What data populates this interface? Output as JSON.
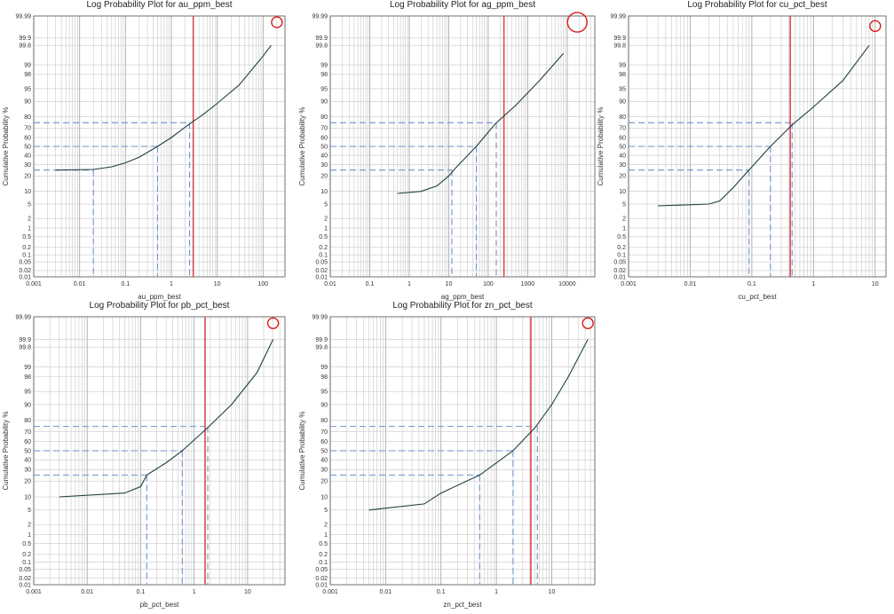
{
  "colors": {
    "curve": "#1f3f3f",
    "grid": "#c8c8c8",
    "guide": "#6f93c9",
    "cutoff": "#e0474c",
    "outlier_marker": "#d91e1e",
    "frame": "#555555"
  },
  "y_axis_label": "Cumulative Probability %",
  "y_tick_labels": [
    "0.01",
    "0.02",
    "0.05",
    "0.1",
    "0.2",
    "0.5",
    "1",
    "2",
    "5",
    "10",
    "20",
    "30",
    "40",
    "50",
    "60",
    "70",
    "80",
    "90",
    "95",
    "98",
    "99",
    "99.8",
    "99.9",
    "99.99"
  ],
  "chart_data": [
    {
      "type": "line",
      "title": "Log Probability Plot for au_ppm_best",
      "xlabel": "au_ppm_best",
      "ylabel": "Cumulative Probability %",
      "x_scale": "log",
      "y_scale": "probability",
      "xlim": [
        0.001,
        300
      ],
      "ylim": [
        0.01,
        99.99
      ],
      "x_tick_labels": [
        "0.001",
        "0.01",
        "0.1",
        "1",
        "10",
        "100"
      ],
      "series": [
        {
          "x": [
            0.003,
            0.02,
            0.05,
            0.1,
            0.2,
            0.5,
            1,
            2.5,
            5,
            10,
            30,
            100,
            150
          ],
          "y": [
            25,
            25.5,
            28,
            32,
            38,
            50,
            60,
            74,
            82,
            89,
            96,
            99.5,
            99.8
          ]
        }
      ],
      "quartiles": [
        {
          "p": 25,
          "x": 0.02
        },
        {
          "p": 50,
          "x": 0.5
        },
        {
          "p": 75,
          "x": 2.5
        }
      ],
      "cutoff_x": 3,
      "outlier_marker": {
        "x": 200,
        "y": 99.98
      }
    },
    {
      "type": "line",
      "title": "Log Probability Plot for ag_ppm_best",
      "xlabel": "ag_ppm_best",
      "ylabel": "Cumulative Probability %",
      "x_scale": "log",
      "y_scale": "probability",
      "xlim": [
        0.01,
        50000
      ],
      "ylim": [
        0.01,
        99.99
      ],
      "x_tick_labels": [
        "0.01",
        "0.1",
        "1",
        "10",
        "100",
        "1000",
        "10000"
      ],
      "series": [
        {
          "x": [
            0.5,
            2,
            5,
            10,
            15,
            50,
            150,
            500,
            2000,
            8000
          ],
          "y": [
            9,
            10,
            13,
            20,
            27,
            50,
            74,
            88,
            97,
            99.6
          ]
        }
      ],
      "quartiles": [
        {
          "p": 25,
          "x": 12
        },
        {
          "p": 50,
          "x": 50
        },
        {
          "p": 75,
          "x": 160
        }
      ],
      "cutoff_x": 250,
      "outlier_marker": {
        "x": 18000,
        "y": 99.98
      }
    },
    {
      "type": "line",
      "title": "Log Probability Plot for cu_pct_best",
      "xlabel": "cu_pct_best",
      "ylabel": "Cumulative Probability %",
      "x_scale": "log",
      "y_scale": "probability",
      "xlim": [
        0.001,
        15
      ],
      "ylim": [
        0.01,
        99.99
      ],
      "x_tick_labels": [
        "0.001",
        "0.01",
        "0.1",
        "1",
        "10"
      ],
      "series": [
        {
          "x": [
            0.003,
            0.02,
            0.03,
            0.05,
            0.08,
            0.2,
            0.45,
            1,
            3,
            8
          ],
          "y": [
            4.5,
            5,
            6,
            12,
            22,
            50,
            73,
            87,
            97,
            99.8
          ]
        }
      ],
      "quartiles": [
        {
          "p": 25,
          "x": 0.09
        },
        {
          "p": 50,
          "x": 0.2
        },
        {
          "p": 75,
          "x": 0.45
        }
      ],
      "cutoff_x": 0.42,
      "outlier_marker": {
        "x": 10,
        "y": 99.97
      }
    },
    {
      "type": "line",
      "title": "Log Probability Plot for pb_pct_best",
      "xlabel": "pb_pct_best",
      "ylabel": "Cumulative Probability %",
      "x_scale": "log",
      "y_scale": "probability",
      "xlim": [
        0.001,
        50
      ],
      "ylim": [
        0.01,
        99.99
      ],
      "x_tick_labels": [
        "0.001",
        "0.01",
        "0.1",
        "1",
        "10"
      ],
      "series": [
        {
          "x": [
            0.003,
            0.05,
            0.1,
            0.13,
            0.3,
            0.6,
            1.8,
            5,
            15,
            30
          ],
          "y": [
            10,
            12,
            16,
            25,
            37,
            50,
            74,
            90,
            98.5,
            99.9
          ]
        }
      ],
      "quartiles": [
        {
          "p": 25,
          "x": 0.13
        },
        {
          "p": 50,
          "x": 0.6
        },
        {
          "p": 75,
          "x": 1.8
        }
      ],
      "cutoff_x": 1.6,
      "outlier_marker": {
        "x": 30,
        "y": 99.98
      }
    },
    {
      "type": "line",
      "title": "Log Probability Plot for zn_pct_best",
      "xlabel": "zn_pct_best",
      "ylabel": "Cumulative Probability %",
      "x_scale": "log",
      "y_scale": "probability",
      "xlim": [
        0.001,
        60
      ],
      "ylim": [
        0.01,
        99.99
      ],
      "x_tick_labels": [
        "0.001",
        "0.01",
        "0.1",
        "1",
        "10"
      ],
      "series": [
        {
          "x": [
            0.005,
            0.05,
            0.1,
            0.5,
            2,
            5,
            10,
            20,
            45
          ],
          "y": [
            5,
            7,
            12,
            25,
            50,
            74,
            90,
            98,
            99.9
          ]
        }
      ],
      "quartiles": [
        {
          "p": 25,
          "x": 0.5
        },
        {
          "p": 50,
          "x": 2
        },
        {
          "p": 75,
          "x": 5.5
        }
      ],
      "cutoff_x": 4.2,
      "outlier_marker": {
        "x": 45,
        "y": 99.98
      }
    }
  ]
}
